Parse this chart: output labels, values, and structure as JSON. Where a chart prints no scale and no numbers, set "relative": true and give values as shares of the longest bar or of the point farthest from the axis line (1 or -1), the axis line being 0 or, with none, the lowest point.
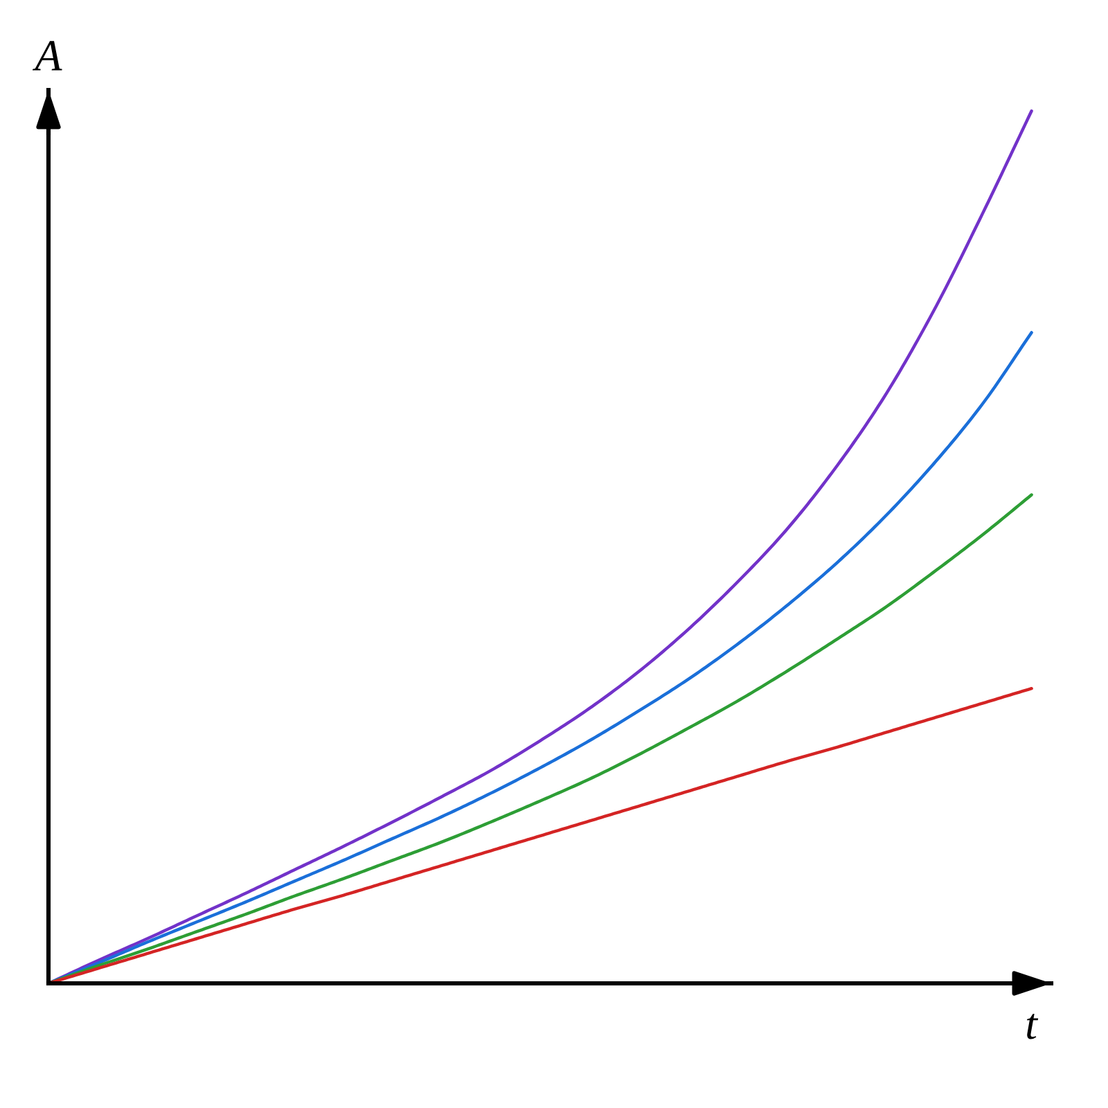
{
  "chart_data": {
    "type": "line",
    "xlabel": "t",
    "ylabel": "A",
    "relative": true,
    "categories": [
      null,
      null,
      null,
      null,
      null,
      null,
      null,
      null,
      null,
      null,
      null,
      null,
      null,
      null,
      null,
      null,
      null,
      null,
      null,
      null,
      null
    ],
    "series": [
      {
        "color": "#7232c9",
        "values": [
          0,
          0.026,
          0.051,
          0.077,
          0.103,
          0.13,
          0.157,
          0.185,
          0.214,
          0.244,
          0.278,
          0.315,
          0.357,
          0.405,
          0.459,
          0.519,
          0.59,
          0.672,
          0.77,
          0.882,
          1
        ]
      },
      {
        "color": "#1a6fd9",
        "values": [
          0,
          0.023,
          0.047,
          0.07,
          0.093,
          0.117,
          0.141,
          0.166,
          0.191,
          0.218,
          0.247,
          0.278,
          0.312,
          0.348,
          0.388,
          0.432,
          0.48,
          0.534,
          0.595,
          0.664,
          0.746
        ]
      },
      {
        "color": "#2d9e35",
        "values": [
          0,
          0.02,
          0.039,
          0.059,
          0.079,
          0.1,
          0.12,
          0.141,
          0.162,
          0.185,
          0.209,
          0.234,
          0.262,
          0.292,
          0.323,
          0.357,
          0.393,
          0.43,
          0.471,
          0.514,
          0.56
        ]
      },
      {
        "color": "#d42424",
        "values": [
          0,
          0.017,
          0.034,
          0.051,
          0.068,
          0.085,
          0.101,
          0.118,
          0.135,
          0.152,
          0.169,
          0.186,
          0.203,
          0.22,
          0.237,
          0.254,
          0.27,
          0.287,
          0.304,
          0.321,
          0.338
        ]
      }
    ]
  }
}
